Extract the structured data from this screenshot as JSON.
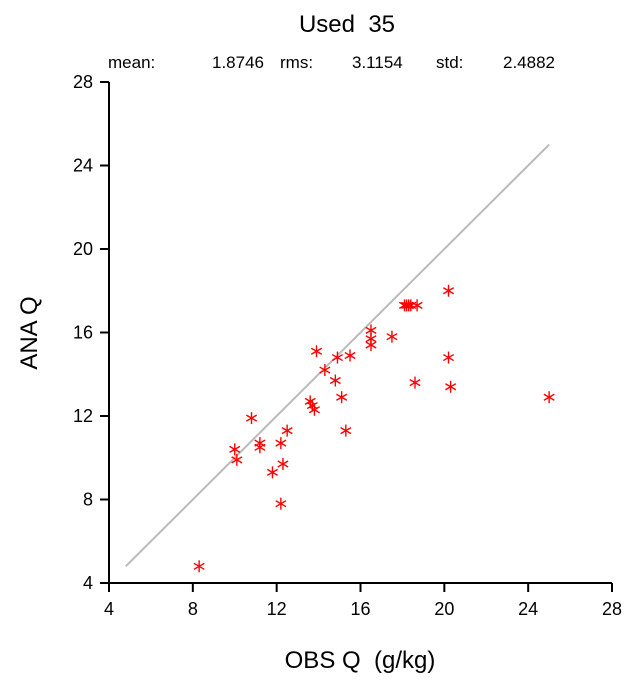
{
  "chart_data": {
    "type": "scatter",
    "title": "Used  35",
    "stats": {
      "mean_label": "mean:",
      "mean_value": "1.8746",
      "rms_label": "rms:",
      "rms_value": "3.1154",
      "std_label": "std:",
      "std_value": "2.4882"
    },
    "xlabel": "OBS Q  (g/kg)",
    "ylabel": "ANA Q",
    "xlim": [
      4,
      28
    ],
    "ylim": [
      4,
      28
    ],
    "xticks": [
      "4",
      "8",
      "12",
      "16",
      "20",
      "24",
      "28"
    ],
    "yticks": [
      "4",
      "8",
      "12",
      "16",
      "20",
      "24",
      "28"
    ],
    "grid": false,
    "marker": "asterisk",
    "marker_color": "#ff0000",
    "reference_line": {
      "x": [
        4.8,
        25.0
      ],
      "y": [
        4.8,
        25.0
      ],
      "color": "#bbbbbb"
    },
    "points": [
      {
        "x": 8.3,
        "y": 4.8
      },
      {
        "x": 10.0,
        "y": 10.4
      },
      {
        "x": 10.1,
        "y": 9.9
      },
      {
        "x": 10.8,
        "y": 11.9
      },
      {
        "x": 11.2,
        "y": 10.7
      },
      {
        "x": 11.2,
        "y": 10.5
      },
      {
        "x": 11.8,
        "y": 9.3
      },
      {
        "x": 12.2,
        "y": 7.8
      },
      {
        "x": 12.2,
        "y": 10.7
      },
      {
        "x": 12.3,
        "y": 9.7
      },
      {
        "x": 12.5,
        "y": 11.3
      },
      {
        "x": 13.6,
        "y": 12.7
      },
      {
        "x": 13.7,
        "y": 12.5
      },
      {
        "x": 13.8,
        "y": 12.3
      },
      {
        "x": 13.9,
        "y": 15.1
      },
      {
        "x": 14.3,
        "y": 14.2
      },
      {
        "x": 14.8,
        "y": 13.7
      },
      {
        "x": 14.9,
        "y": 14.8
      },
      {
        "x": 15.1,
        "y": 12.9
      },
      {
        "x": 15.3,
        "y": 11.3
      },
      {
        "x": 15.5,
        "y": 14.9
      },
      {
        "x": 16.5,
        "y": 16.1
      },
      {
        "x": 16.5,
        "y": 15.7
      },
      {
        "x": 16.5,
        "y": 15.4
      },
      {
        "x": 17.5,
        "y": 15.8
      },
      {
        "x": 18.1,
        "y": 17.3
      },
      {
        "x": 18.2,
        "y": 17.3
      },
      {
        "x": 18.3,
        "y": 17.3
      },
      {
        "x": 18.4,
        "y": 17.3
      },
      {
        "x": 18.7,
        "y": 17.3
      },
      {
        "x": 18.6,
        "y": 13.6
      },
      {
        "x": 20.2,
        "y": 18.0
      },
      {
        "x": 20.2,
        "y": 14.8
      },
      {
        "x": 20.3,
        "y": 13.4
      },
      {
        "x": 25.0,
        "y": 12.9
      }
    ]
  }
}
